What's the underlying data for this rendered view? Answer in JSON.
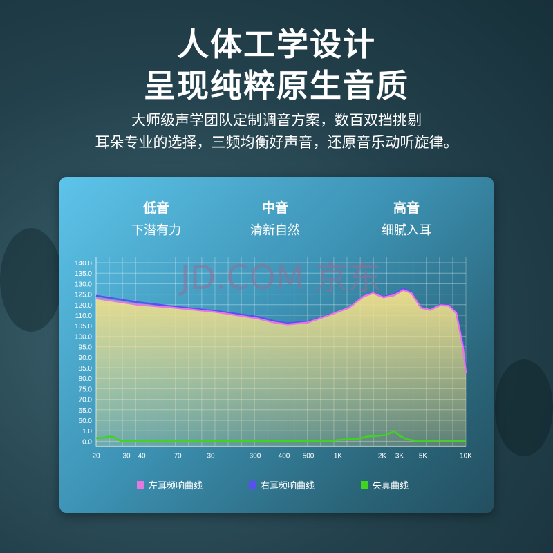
{
  "headline": {
    "line1": "人体工学设计",
    "line2": "呈现纯粹原生音质"
  },
  "subtitle": {
    "line1": "大师级声学团队定制调音方案，数百双挡挑剔",
    "line2": "耳朵专业的选择，三频均衡好声音，还原音乐动听旋律。"
  },
  "bands": [
    {
      "name": "低音",
      "desc": "下潜有力"
    },
    {
      "name": "中音",
      "desc": "清新自然"
    },
    {
      "name": "高音",
      "desc": "细腻入耳"
    }
  ],
  "watermark": "JD.COM 京东",
  "chart_data": {
    "type": "area",
    "x_scale": "log",
    "grid": true,
    "legend_placement": "bottom",
    "x_ticks": [
      "20",
      "30",
      "40",
      "70",
      "30",
      "300",
      "400",
      "500",
      "1K",
      "2K",
      "3K",
      "5K",
      "10K"
    ],
    "y_ticks": [
      "140.0",
      "135.0",
      "130.0",
      "125.0",
      "120.0",
      "110.0",
      "105.0",
      "100.0",
      "95.0",
      "90.0",
      "85.0",
      "80.0",
      "75.0",
      "70.0",
      "65.0",
      "60.0",
      "1.0",
      "0.0"
    ],
    "series": [
      {
        "name": "左耳频响曲线",
        "color": "#e477e0",
        "fill": "#f2e08a",
        "points": [
          [
            20,
            123
          ],
          [
            30,
            121.3
          ],
          [
            40,
            120
          ],
          [
            70,
            117.5
          ],
          [
            150,
            113
          ],
          [
            300,
            108.5
          ],
          [
            400,
            106.5
          ],
          [
            500,
            105.6
          ],
          [
            700,
            106.5
          ],
          [
            1000,
            110
          ],
          [
            1400,
            117
          ],
          [
            1800,
            124
          ],
          [
            2100,
            125.5
          ],
          [
            2500,
            123.5
          ],
          [
            3000,
            124.5
          ],
          [
            3500,
            127
          ],
          [
            4000,
            125.5
          ],
          [
            4700,
            117
          ],
          [
            5500,
            115
          ],
          [
            6500,
            119.5
          ],
          [
            7500,
            119
          ],
          [
            8500,
            112
          ],
          [
            9500,
            95
          ],
          [
            10000,
            82.5
          ]
        ]
      },
      {
        "name": "右耳频响曲线",
        "color": "#5a4ff0",
        "points": [
          [
            20,
            124.3
          ],
          [
            30,
            122.5
          ],
          [
            40,
            121.2
          ],
          [
            70,
            118.6
          ],
          [
            150,
            114
          ],
          [
            300,
            109.3
          ],
          [
            400,
            107.2
          ],
          [
            500,
            106.2
          ],
          [
            700,
            107
          ],
          [
            1000,
            110.3
          ],
          [
            1400,
            117.2
          ],
          [
            1800,
            124.2
          ],
          [
            2100,
            125.8
          ],
          [
            2500,
            123.8
          ],
          [
            3000,
            125
          ],
          [
            3500,
            127.8
          ],
          [
            4000,
            126
          ],
          [
            4700,
            117.4
          ],
          [
            5500,
            115.3
          ],
          [
            6500,
            120
          ],
          [
            7500,
            119.7
          ],
          [
            8500,
            113.5
          ],
          [
            9500,
            97
          ],
          [
            10000,
            84
          ]
        ]
      },
      {
        "name": "失真曲线",
        "color": "#3fd41e",
        "points": [
          [
            20,
            0.3
          ],
          [
            23,
            0.35
          ],
          [
            25,
            0.45
          ],
          [
            27,
            0.4
          ],
          [
            30,
            0.05
          ],
          [
            100,
            0.05
          ],
          [
            1000,
            0
          ],
          [
            1200,
            0.15
          ],
          [
            1400,
            0.2
          ],
          [
            1600,
            0.2
          ],
          [
            1900,
            0.45
          ],
          [
            2200,
            0.5
          ],
          [
            2600,
            0.6
          ],
          [
            3000,
            0.95
          ],
          [
            3300,
            0.5
          ],
          [
            3700,
            0.2
          ],
          [
            4500,
            0
          ],
          [
            5200,
            0
          ],
          [
            5600,
            0.08
          ],
          [
            10000,
            0.05
          ]
        ]
      }
    ]
  }
}
